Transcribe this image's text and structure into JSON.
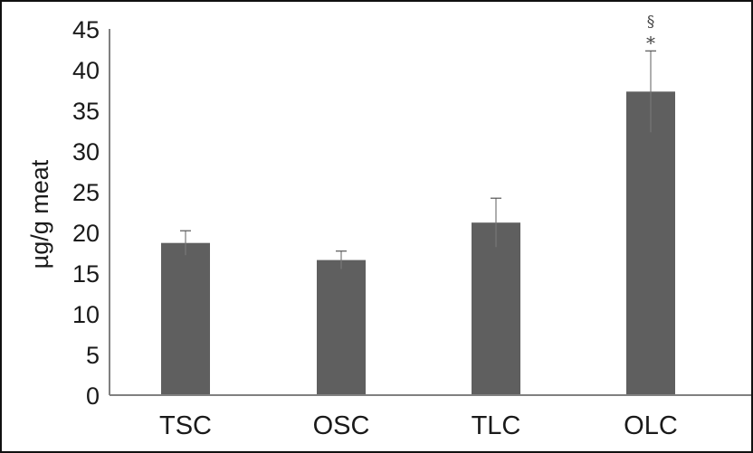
{
  "chart_data": {
    "type": "bar",
    "title": "",
    "xlabel": "",
    "ylabel": "µg/g meat",
    "categories": [
      "TSC",
      "OSC",
      "TLC",
      "OLC"
    ],
    "values": [
      18.7,
      16.6,
      21.2,
      37.3
    ],
    "error_upper": [
      1.5,
      1.1,
      3.0,
      5.0
    ],
    "annotations": [
      {
        "category": "OLC",
        "text": "§"
      },
      {
        "category": "OLC",
        "text": "*"
      }
    ],
    "ylim": [
      0,
      45
    ],
    "yticks": [
      "0",
      "5",
      "10",
      "15",
      "20",
      "25",
      "30",
      "35",
      "40",
      "45"
    ],
    "grid": false,
    "bar_color": "#5f5f5f",
    "axis_color": "#808080"
  }
}
